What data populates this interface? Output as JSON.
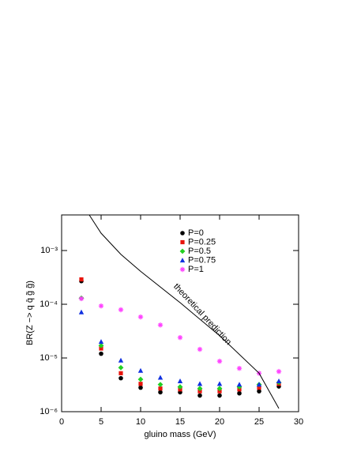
{
  "chart_data": {
    "type": "scatter",
    "x_label": "gluino mass  (GeV)",
    "y_label": "BR(Z −> q q̄ g̃ g̃)",
    "annotation": "theoretical prediction",
    "log_y": true,
    "xlim": [
      0,
      30
    ],
    "xticks": [
      0,
      5,
      10,
      15,
      20,
      25,
      30
    ],
    "ylim": [
      1e-06,
      0.0046
    ],
    "yticks": [
      {
        "value": 1e-06,
        "label": "10⁻⁶"
      },
      {
        "value": 1e-05,
        "label": "10⁻⁵"
      },
      {
        "value": 0.0001,
        "label": "10⁻⁴"
      },
      {
        "value": 0.001,
        "label": "10⁻³"
      }
    ],
    "x": [
      2.5,
      5,
      7.5,
      10,
      12.5,
      15,
      17.5,
      20,
      22.5,
      25,
      27.5
    ],
    "series": [
      {
        "name": "P=0",
        "color": "#000000",
        "marker": "circle",
        "values": [
          0.00027,
          1.2e-05,
          4.2e-06,
          2.8e-06,
          2.3e-06,
          2.3e-06,
          2e-06,
          2e-06,
          2.2e-06,
          2.4e-06,
          2.95e-06
        ]
      },
      {
        "name": "P=0.25",
        "color": "#e8140c",
        "marker": "square",
        "values": [
          0.00029,
          1.5e-05,
          5.2e-06,
          3.3e-06,
          2.7e-06,
          2.6e-06,
          2.4e-06,
          2.4e-06,
          2.6e-06,
          2.8e-06,
          3.3e-06
        ]
      },
      {
        "name": "P=0.5",
        "color": "#22d022",
        "marker": "diamond",
        "values": [
          0.00013,
          1.7e-05,
          6.6e-06,
          4e-06,
          3.2e-06,
          2.9e-06,
          2.7e-06,
          2.7e-06,
          2.9e-06,
          3.2e-06,
          3.5e-06
        ]
      },
      {
        "name": "P=0.75",
        "color": "#1030e0",
        "marker": "triangle",
        "values": [
          7.1e-05,
          2e-05,
          9e-06,
          5.8e-06,
          4.3e-06,
          3.7e-06,
          3.3e-06,
          3.3e-06,
          3.2e-06,
          3.2e-06,
          3.7e-06
        ]
      },
      {
        "name": "P=1",
        "color": "#ff40ff",
        "marker": "star",
        "values": [
          0.000127,
          9.3e-05,
          7.9e-05,
          5.8e-05,
          4.1e-05,
          2.4e-05,
          1.45e-05,
          8.7e-06,
          6.4e-06,
          5.2e-06,
          5.6e-06
        ]
      }
    ],
    "line": {
      "color": "#000000",
      "x": [
        3.5,
        5,
        7.5,
        10,
        15,
        20,
        25,
        27.5
      ],
      "values": [
        0.0046,
        0.0021,
        0.00085,
        0.00041,
        0.000107,
        2.6e-05,
        5.2e-06,
        1.15e-06
      ]
    }
  }
}
